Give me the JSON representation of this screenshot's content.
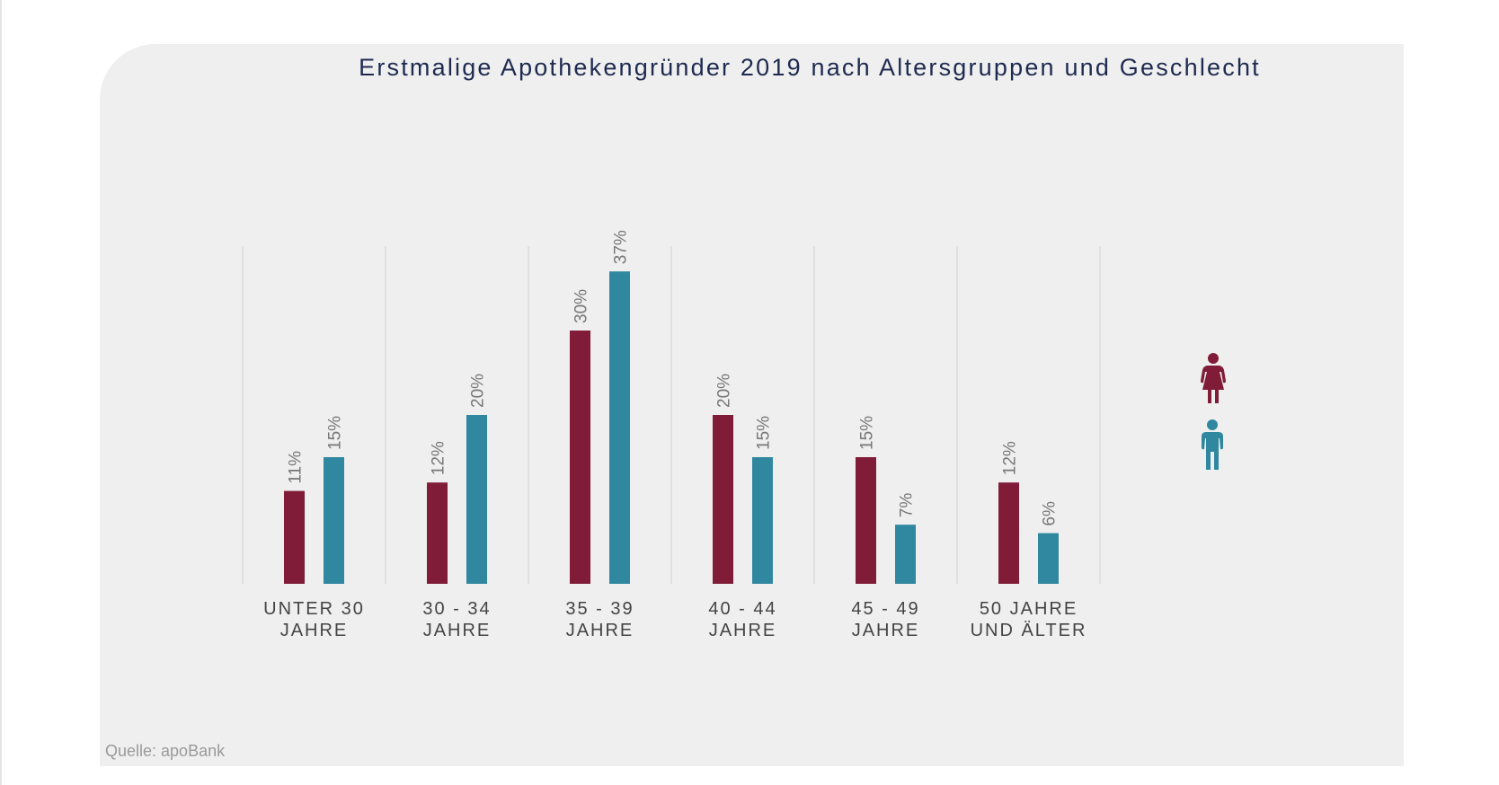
{
  "chart_data": {
    "type": "bar",
    "title": "Erstmalige Apothekengründer 2019 nach Altersgruppen und Geschlecht",
    "categories": [
      [
        "UNTER 30",
        "JAHRE"
      ],
      [
        "30 - 34",
        "JAHRE"
      ],
      [
        "35 - 39",
        "JAHRE"
      ],
      [
        "40 - 44",
        "JAHRE"
      ],
      [
        "45 - 49",
        "JAHRE"
      ],
      [
        "50 JAHRE",
        "UND ÄLTER"
      ]
    ],
    "series": [
      {
        "name": "female",
        "icon": "female-icon",
        "color": "#801c38",
        "values": [
          11,
          12,
          30,
          20,
          15,
          12
        ],
        "labels": [
          "11%",
          "12%",
          "30%",
          "20%",
          "15%",
          "12%"
        ]
      },
      {
        "name": "male",
        "icon": "male-icon",
        "color": "#2f87a0",
        "values": [
          15,
          20,
          37,
          15,
          7,
          6
        ],
        "labels": [
          "15%",
          "20%",
          "37%",
          "15%",
          "7%",
          "6%"
        ]
      }
    ],
    "xlabel": "",
    "ylabel": "",
    "unit": "%",
    "ylim": [
      0,
      40
    ],
    "grid": "vertical separators between categories",
    "legend": "right"
  },
  "source": "Quelle: apoBank"
}
